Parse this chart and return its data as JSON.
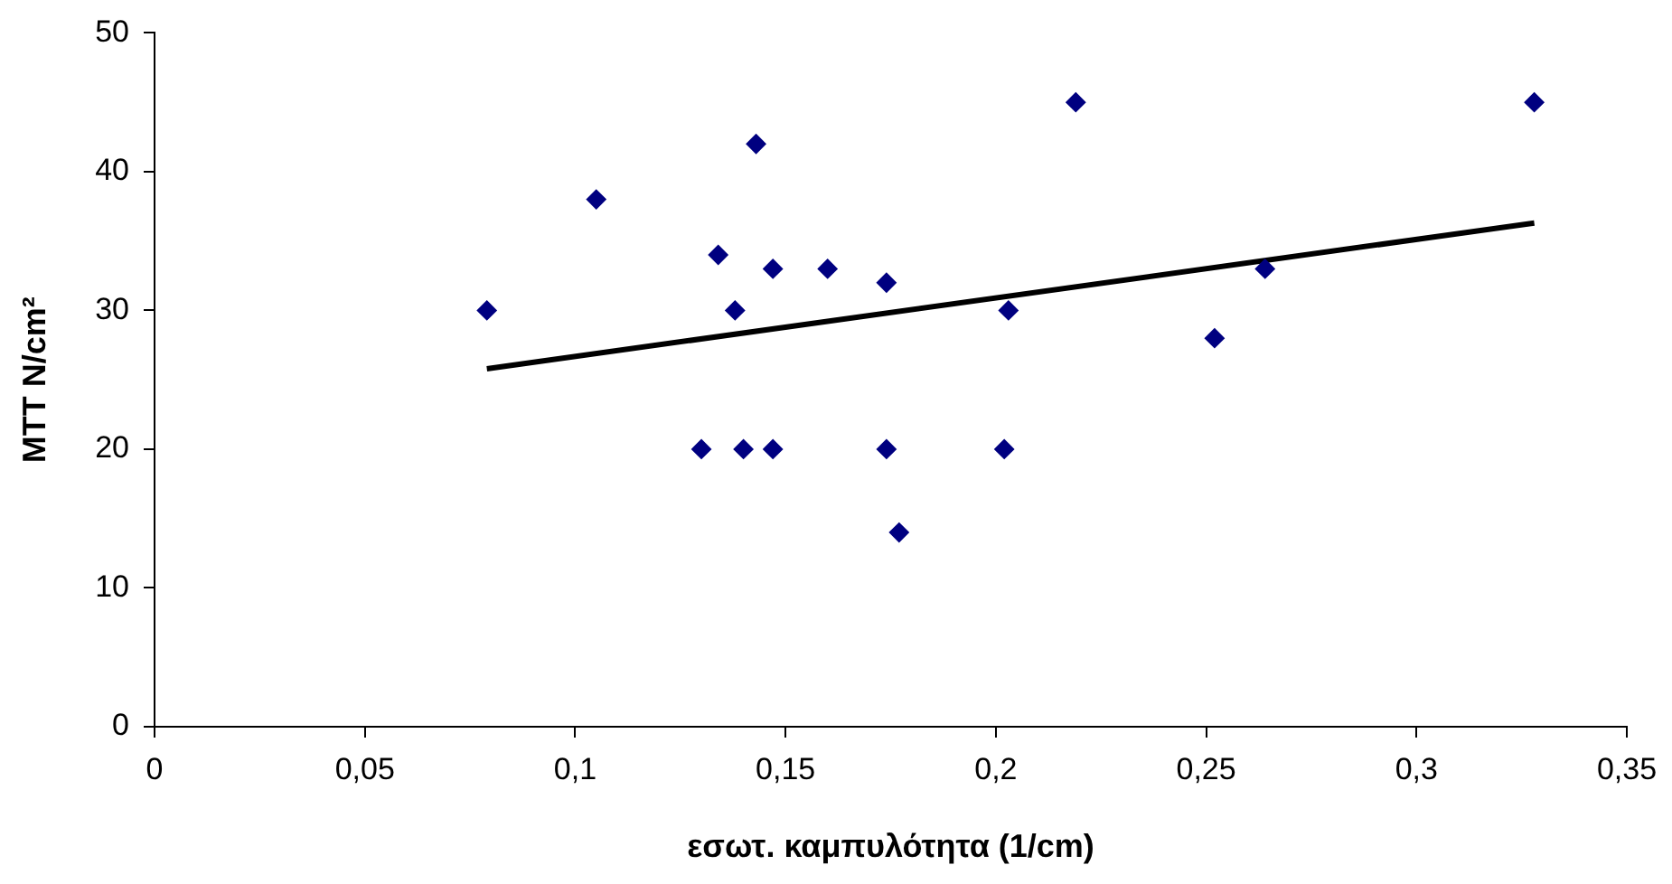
{
  "chart_data": {
    "type": "scatter",
    "xlabel": "εσωτ. καμπυλότητα (1/cm)",
    "ylabel": "MTT N/cm²",
    "xlim": [
      0,
      0.35
    ],
    "xticks": [
      0,
      {
        "value": 0.05,
        "label": "0,05"
      },
      {
        "value": 0.1,
        "label": "0,1"
      },
      {
        "value": 0.15,
        "label": "0,15"
      },
      {
        "value": 0.2,
        "label": "0,2"
      },
      {
        "value": 0.25,
        "label": "0,25"
      },
      {
        "value": 0.3,
        "label": "0,3"
      },
      {
        "value": 0.35,
        "label": "0,35"
      }
    ],
    "ylim": [
      0,
      50
    ],
    "yticks": [
      0,
      10,
      20,
      30,
      40,
      50
    ],
    "grid": false,
    "legend": false,
    "marker": "diamond",
    "series": [
      {
        "color": "#000080",
        "x": [
          0.079,
          0.105,
          0.13,
          0.134,
          0.138,
          0.14,
          0.143,
          0.147,
          0.147,
          0.16,
          0.174,
          0.174,
          0.177,
          0.203,
          0.202,
          0.219,
          0.252,
          0.264,
          0.328
        ],
        "values": [
          30,
          38,
          20,
          34,
          30,
          20,
          42,
          33,
          20,
          33,
          32,
          20,
          14,
          30,
          20,
          45,
          28,
          33,
          45
        ]
      },
      {
        "type": "line",
        "color": "#000000",
        "marker": "none",
        "x": [
          0.079,
          0.328
        ],
        "values": [
          25.8,
          36.3
        ]
      }
    ]
  }
}
